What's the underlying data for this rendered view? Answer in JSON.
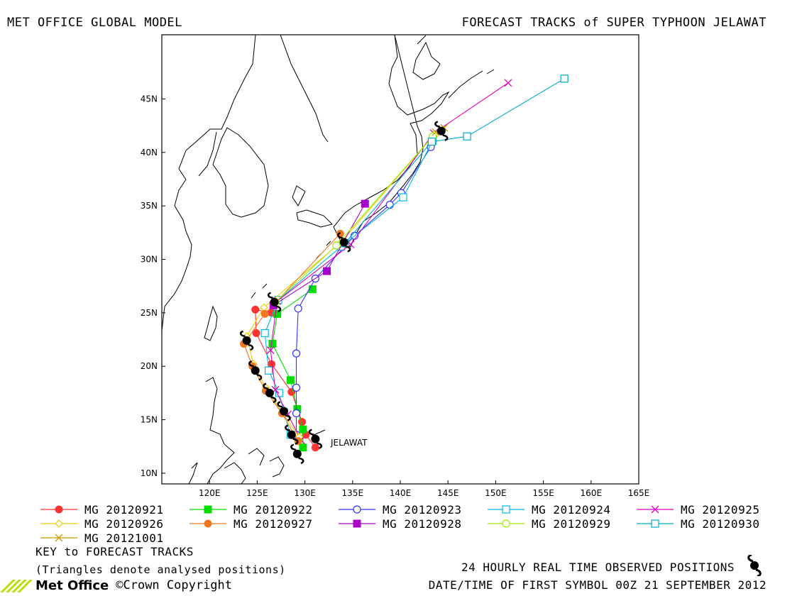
{
  "header": {
    "left_title": "MET OFFICE GLOBAL MODEL",
    "right_title": "FORECAST TRACKS of SUPER TYPHOON JELAWAT"
  },
  "map": {
    "lon_range": [
      115,
      165
    ],
    "lat_range": [
      9,
      51
    ],
    "lon_ticks": [
      "120E",
      "125E",
      "130E",
      "135E",
      "140E",
      "145E",
      "150E",
      "155E",
      "160E",
      "165E"
    ],
    "lat_ticks": [
      "10N",
      "15N",
      "20N",
      "25N",
      "30N",
      "35N",
      "40N",
      "45N"
    ],
    "storm_label": "JELAWAT",
    "observed": [
      [
        131.1,
        13.2
      ],
      [
        129.2,
        11.8
      ],
      [
        128.6,
        13.6
      ],
      [
        127.8,
        15.8
      ],
      [
        126.3,
        17.5
      ],
      [
        124.8,
        19.6
      ],
      [
        123.9,
        22.4
      ],
      [
        126.8,
        26.0
      ],
      [
        134.1,
        31.6
      ],
      [
        144.3,
        42.0
      ]
    ]
  },
  "tracks": [
    {
      "id": "t1",
      "label": "MG 20120921",
      "color": "#ff3333",
      "marker": "circle-filled",
      "points": [
        [
          131.1,
          12.4
        ],
        [
          130.1,
          13.6
        ],
        [
          129.7,
          14.8
        ],
        [
          128.6,
          17.6
        ],
        [
          126.5,
          20.2
        ],
        [
          124.9,
          23.1
        ],
        [
          124.8,
          25.3
        ],
        [
          126.5,
          25.0
        ]
      ]
    },
    {
      "id": "t2",
      "label": "MG 20120922",
      "color": "#00dd00",
      "marker": "square-filled",
      "points": [
        [
          129.8,
          12.4
        ],
        [
          129.8,
          14.1
        ],
        [
          129.2,
          16.0
        ],
        [
          128.5,
          18.7
        ],
        [
          126.6,
          22.1
        ],
        [
          127.1,
          24.9
        ],
        [
          130.8,
          27.2
        ]
      ]
    },
    {
      "id": "t3",
      "label": "MG 20120923",
      "color": "#3333ff",
      "marker": "circle-open",
      "points": [
        [
          129.1,
          13.6
        ],
        [
          129.1,
          15.6
        ],
        [
          129.1,
          18.0
        ],
        [
          129.1,
          21.2
        ],
        [
          129.3,
          25.4
        ],
        [
          131.1,
          28.2
        ],
        [
          135.2,
          32.2
        ],
        [
          138.9,
          35.1
        ],
        [
          140.1,
          36.2
        ],
        [
          143.2,
          40.5
        ]
      ]
    },
    {
      "id": "t4",
      "label": "MG 20120924",
      "color": "#00bbdd",
      "marker": "square-open",
      "points": [
        [
          128.5,
          13.6
        ],
        [
          127.8,
          15.7
        ],
        [
          127.3,
          17.5
        ],
        [
          126.2,
          19.6
        ],
        [
          125.8,
          23.1
        ],
        [
          127.2,
          26.2
        ],
        [
          133.8,
          31.2
        ],
        [
          140.3,
          35.8
        ],
        [
          143.4,
          41.1
        ]
      ]
    },
    {
      "id": "t5",
      "label": "MG 20120925",
      "color": "#dd00bb",
      "marker": "x",
      "points": [
        [
          129.6,
          13.1
        ],
        [
          128.2,
          15.5
        ],
        [
          126.9,
          17.8
        ],
        [
          126.4,
          21.5
        ],
        [
          127.1,
          26.1
        ],
        [
          134.8,
          31.4
        ],
        [
          143.5,
          41.8
        ],
        [
          151.3,
          46.5
        ]
      ]
    },
    {
      "id": "t6",
      "label": "MG 20120926",
      "color": "#eecc00",
      "marker": "diamond",
      "points": [
        [
          129.4,
          13.4
        ],
        [
          127.6,
          15.7
        ],
        [
          125.9,
          18.0
        ],
        [
          124.6,
          20.2
        ],
        [
          123.9,
          22.8
        ],
        [
          125.7,
          25.5
        ],
        [
          133.9,
          31.7
        ],
        [
          143.6,
          41.7
        ]
      ]
    },
    {
      "id": "t7",
      "label": "MG 20120927",
      "color": "#ee7722",
      "marker": "circle-filled",
      "points": [
        [
          129.3,
          13.0
        ],
        [
          127.6,
          15.6
        ],
        [
          125.9,
          17.7
        ],
        [
          124.5,
          20.0
        ],
        [
          123.6,
          22.1
        ],
        [
          125.8,
          24.9
        ],
        [
          133.7,
          32.4
        ]
      ]
    },
    {
      "id": "t8",
      "label": "MG 20120928",
      "color": "#aa00cc",
      "marker": "square-filled",
      "points": [
        [
          126.7,
          25.7
        ],
        [
          132.3,
          28.9
        ],
        [
          136.3,
          35.2
        ]
      ]
    },
    {
      "id": "t9",
      "label": "MG 20120929",
      "color": "#99ee00",
      "marker": "circle-open",
      "points": [
        [
          126.9,
          26.0
        ],
        [
          133.3,
          31.3
        ],
        [
          143.4,
          41.5
        ]
      ]
    },
    {
      "id": "t10",
      "label": "MG 20120930",
      "color": "#00aacc",
      "marker": "square-open",
      "points": [
        [
          134.2,
          31.5
        ],
        [
          143.3,
          41.0
        ],
        [
          147.0,
          41.5
        ],
        [
          157.2,
          46.9
        ]
      ]
    },
    {
      "id": "t11",
      "label": "MG 20121001",
      "color": "#cc9900",
      "marker": "x",
      "points": [
        [
          143.7,
          41.9
        ],
        [
          144.6,
          42.3
        ]
      ]
    }
  ],
  "key": {
    "title": "KEY to FORECAST TRACKS",
    "note": "(Triangles denote analysed positions)",
    "observed_label": "24 HOURLY REAL TIME OBSERVED POSITIONS",
    "date_label": "DATE/TIME OF FIRST SYMBOL 00Z 21 SEPTEMBER 2012"
  },
  "footer": {
    "logo_text": "Met Office",
    "copyright": "©Crown Copyright"
  }
}
